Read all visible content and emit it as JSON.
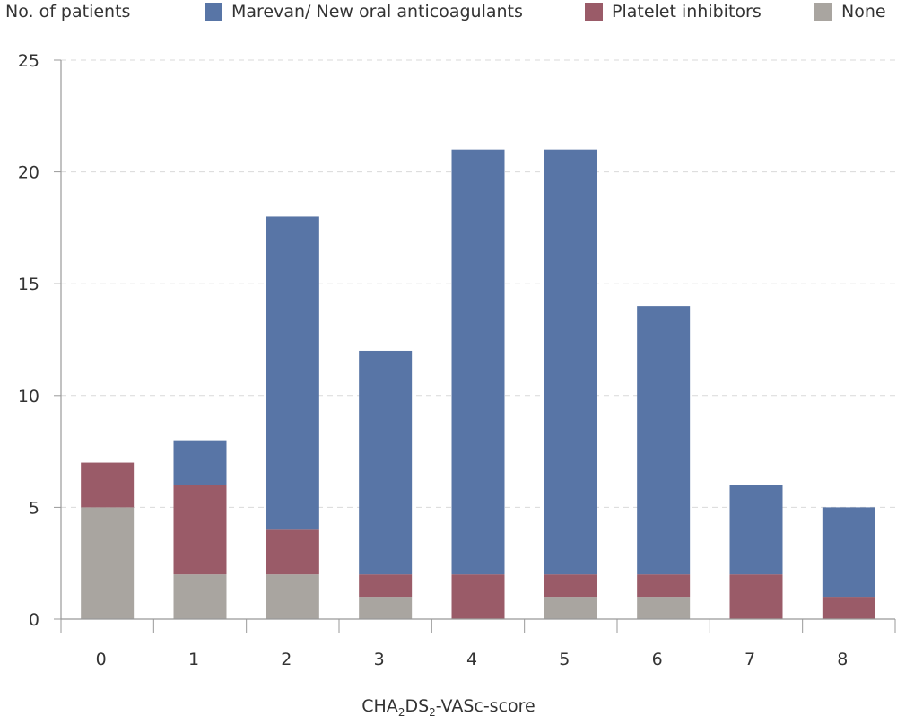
{
  "chart_data": {
    "type": "bar",
    "stacked": true,
    "ylabel": "No. of patients",
    "xlabel": {
      "main": "CHA",
      "sub1": "2",
      "mid": "DS",
      "sub2": "2",
      "end": "-VASc-score"
    },
    "categories": [
      "0",
      "1",
      "2",
      "3",
      "4",
      "5",
      "6",
      "7",
      "8"
    ],
    "ylim": [
      0,
      25
    ],
    "yticks": [
      0,
      5,
      10,
      15,
      20,
      25
    ],
    "grid": true,
    "legend_position": "top",
    "series": [
      {
        "name": "None",
        "color": "#a9a5a0",
        "values": [
          5,
          2,
          2,
          1,
          0,
          1,
          1,
          0,
          0
        ]
      },
      {
        "name": "Platelet inhibitors",
        "color": "#9a5b68",
        "values": [
          2,
          4,
          2,
          1,
          2,
          1,
          1,
          2,
          1
        ]
      },
      {
        "name": "Marevan/ New oral anticoagulants",
        "color": "#5875a6",
        "values": [
          0,
          2,
          14,
          10,
          19,
          19,
          12,
          4,
          4
        ]
      }
    ],
    "legend_order": [
      "Marevan/ New oral anticoagulants",
      "Platelet inhibitors",
      "None"
    ]
  }
}
